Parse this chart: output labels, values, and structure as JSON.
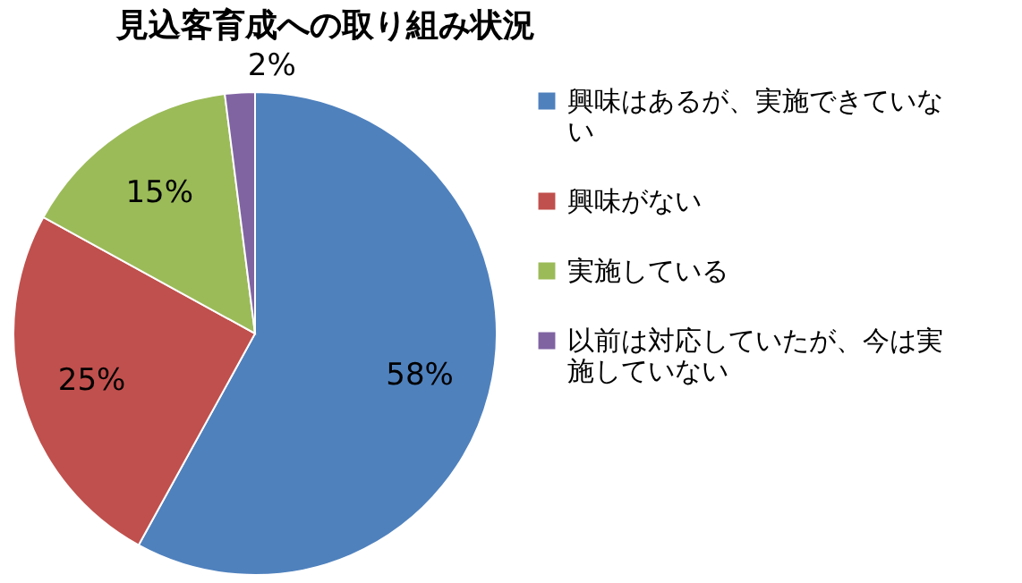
{
  "chart_data": {
    "type": "pie",
    "title": "見込客育成への取り組み状況",
    "categories": [
      "興味はあるが、実施できていない",
      "興味がない",
      "実施している",
      "以前は対応していたが、今は実施していない"
    ],
    "values": [
      58,
      25,
      15,
      2
    ],
    "colors": [
      "#4f81bd",
      "#c0504d",
      "#9bbb59",
      "#8064a2"
    ],
    "value_labels": [
      "58%",
      "25%",
      "15%",
      "2%"
    ],
    "legend": "right"
  }
}
